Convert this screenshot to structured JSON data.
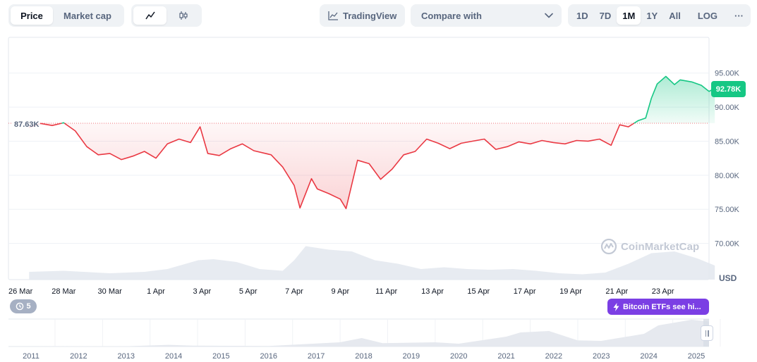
{
  "toolbar": {
    "type_options": [
      {
        "label": "Price",
        "active": true
      },
      {
        "label": "Market cap",
        "active": false
      }
    ],
    "style_options": [
      {
        "icon": "line-chart-icon",
        "active": true
      },
      {
        "icon": "candlestick-icon",
        "active": false
      }
    ],
    "tradingview_label": "TradingView",
    "compare_placeholder": "Compare with",
    "ranges": [
      "1D",
      "7D",
      "1M",
      "1Y",
      "All"
    ],
    "active_range": "1M",
    "log_label": "LOG",
    "more_label": "···"
  },
  "labels": {
    "open_price": "87.63K",
    "current_price": "92.78K",
    "currency": "USD",
    "watermark": "CoinMarketCap",
    "events_count": "5",
    "event_label": "Bitcoin ETFs see hi..."
  },
  "colors": {
    "up": "#16c784",
    "down": "#ea3943",
    "event": "#7b3fe4",
    "muted": "#58667e"
  },
  "chart_data": {
    "type": "line",
    "baseline": 87630,
    "ylim": [
      65000,
      100000
    ],
    "y_ticks": [
      70000,
      75000,
      80000,
      85000,
      90000,
      95000
    ],
    "y_tick_labels": [
      "70.00K",
      "75.00K",
      "80.00K",
      "85.00K",
      "90.00K",
      "95.00K"
    ],
    "x_range": [
      "2025-03-26",
      "2025-04-25"
    ],
    "x_ticks": [
      "2025-03-26",
      "2025-03-28",
      "2025-03-30",
      "2025-04-01",
      "2025-04-03",
      "2025-04-05",
      "2025-04-07",
      "2025-04-09",
      "2025-04-11",
      "2025-04-13",
      "2025-04-15",
      "2025-04-17",
      "2025-04-19",
      "2025-04-21",
      "2025-04-23"
    ],
    "x_tick_labels": [
      "26 Mar",
      "28 Mar",
      "30 Mar",
      "1 Apr",
      "3 Apr",
      "5 Apr",
      "7 Apr",
      "9 Apr",
      "11 Apr",
      "13 Apr",
      "15 Apr",
      "17 Apr",
      "19 Apr",
      "21 Apr",
      "23 Apr"
    ],
    "series": [
      {
        "points": [
          [
            "2025-03-26T12:00",
            87000
          ],
          [
            "2025-03-27T00:00",
            87600
          ],
          [
            "2025-03-27T12:00",
            87300
          ],
          [
            "2025-03-28T00:00",
            87700
          ],
          [
            "2025-03-28T12:00",
            86500
          ],
          [
            "2025-03-29T00:00",
            84200
          ],
          [
            "2025-03-29T12:00",
            83000
          ],
          [
            "2025-03-30T00:00",
            83200
          ],
          [
            "2025-03-30T12:00",
            82300
          ],
          [
            "2025-03-31T00:00",
            82800
          ],
          [
            "2025-03-31T12:00",
            83500
          ],
          [
            "2025-04-01T00:00",
            82500
          ],
          [
            "2025-04-01T12:00",
            84600
          ],
          [
            "2025-04-02T00:00",
            85300
          ],
          [
            "2025-04-02T12:00",
            84800
          ],
          [
            "2025-04-02T22:00",
            87100
          ],
          [
            "2025-04-03T06:00",
            83200
          ],
          [
            "2025-04-03T18:00",
            82900
          ],
          [
            "2025-04-04T06:00",
            83900
          ],
          [
            "2025-04-04T18:00",
            84600
          ],
          [
            "2025-04-05T06:00",
            83600
          ],
          [
            "2025-04-06T00:00",
            83000
          ],
          [
            "2025-04-06T12:00",
            81200
          ],
          [
            "2025-04-07T00:00",
            78500
          ],
          [
            "2025-04-07T06:00",
            75200
          ],
          [
            "2025-04-07T18:00",
            79500
          ],
          [
            "2025-04-08T00:00",
            78000
          ],
          [
            "2025-04-08T12:00",
            77300
          ],
          [
            "2025-04-09T00:00",
            76500
          ],
          [
            "2025-04-09T06:00",
            75100
          ],
          [
            "2025-04-09T18:00",
            82200
          ],
          [
            "2025-04-10T06:00",
            81700
          ],
          [
            "2025-04-10T18:00",
            79400
          ],
          [
            "2025-04-11T06:00",
            80900
          ],
          [
            "2025-04-11T18:00",
            83000
          ],
          [
            "2025-04-12T06:00",
            83500
          ],
          [
            "2025-04-12T18:00",
            85300
          ],
          [
            "2025-04-13T06:00",
            84700
          ],
          [
            "2025-04-13T18:00",
            83900
          ],
          [
            "2025-04-14T06:00",
            84700
          ],
          [
            "2025-04-14T18:00",
            85000
          ],
          [
            "2025-04-15T06:00",
            85300
          ],
          [
            "2025-04-15T18:00",
            83800
          ],
          [
            "2025-04-16T06:00",
            84200
          ],
          [
            "2025-04-16T18:00",
            84900
          ],
          [
            "2025-04-17T06:00",
            84600
          ],
          [
            "2025-04-17T18:00",
            85100
          ],
          [
            "2025-04-18T06:00",
            84800
          ],
          [
            "2025-04-18T18:00",
            84600
          ],
          [
            "2025-04-19T06:00",
            85100
          ],
          [
            "2025-04-19T18:00",
            85000
          ],
          [
            "2025-04-20T06:00",
            85300
          ],
          [
            "2025-04-20T18:00",
            84400
          ],
          [
            "2025-04-21T03:00",
            87400
          ],
          [
            "2025-04-21T12:00",
            87100
          ],
          [
            "2025-04-21T22:00",
            88000
          ],
          [
            "2025-04-22T06:00",
            88400
          ],
          [
            "2025-04-22T12:00",
            91300
          ],
          [
            "2025-04-22T18:00",
            93400
          ],
          [
            "2025-04-23T03:00",
            94500
          ],
          [
            "2025-04-23T12:00",
            93300
          ],
          [
            "2025-04-23T18:00",
            94000
          ],
          [
            "2025-04-24T06:00",
            93700
          ],
          [
            "2025-04-24T16:00",
            93200
          ],
          [
            "2025-04-25T00:00",
            92300
          ],
          [
            "2025-04-25T06:00",
            92780
          ]
        ]
      }
    ],
    "volume": [
      [
        "2025-03-26T12:00",
        0.22
      ],
      [
        "2025-03-28T00:00",
        0.25
      ],
      [
        "2025-03-30T00:00",
        0.18
      ],
      [
        "2025-03-31T12:00",
        0.22
      ],
      [
        "2025-04-01T12:00",
        0.3
      ],
      [
        "2025-04-02T20:00",
        0.55
      ],
      [
        "2025-04-03T12:00",
        0.58
      ],
      [
        "2025-04-04T12:00",
        0.5
      ],
      [
        "2025-04-05T12:00",
        0.3
      ],
      [
        "2025-04-06T12:00",
        0.25
      ],
      [
        "2025-04-07T00:00",
        0.55
      ],
      [
        "2025-04-07T12:00",
        0.95
      ],
      [
        "2025-04-08T12:00",
        0.85
      ],
      [
        "2025-04-09T12:00",
        0.8
      ],
      [
        "2025-04-10T12:00",
        0.55
      ],
      [
        "2025-04-11T12:00",
        0.45
      ],
      [
        "2025-04-12T12:00",
        0.3
      ],
      [
        "2025-04-13T12:00",
        0.35
      ],
      [
        "2025-04-14T12:00",
        0.3
      ],
      [
        "2025-04-15T12:00",
        0.28
      ],
      [
        "2025-04-16T12:00",
        0.3
      ],
      [
        "2025-04-17T12:00",
        0.25
      ],
      [
        "2025-04-18T12:00",
        0.18
      ],
      [
        "2025-04-19T12:00",
        0.15
      ],
      [
        "2025-04-20T12:00",
        0.2
      ],
      [
        "2025-04-21T12:00",
        0.45
      ],
      [
        "2025-04-22T12:00",
        0.75
      ],
      [
        "2025-04-23T12:00",
        0.8
      ],
      [
        "2025-04-24T12:00",
        0.6
      ],
      [
        "2025-04-25T06:00",
        0.4
      ]
    ],
    "navigator": {
      "year_labels": [
        "2011",
        "2012",
        "2013",
        "2014",
        "2015",
        "2016",
        "2017",
        "2018",
        "2019",
        "2020",
        "2021",
        "2022",
        "2023",
        "2024",
        "2025"
      ],
      "year_ticks": [
        2011,
        2012,
        2013,
        2014,
        2015,
        2016,
        2017,
        2018,
        2019,
        2020,
        2021,
        2022,
        2023,
        2024,
        2025
      ],
      "x_range": [
        2010.97,
        2025.33
      ],
      "series": [
        [
          2011,
          0.0
        ],
        [
          2013.0,
          0.01
        ],
        [
          2013.9,
          0.06
        ],
        [
          2014.4,
          0.03
        ],
        [
          2016.0,
          0.02
        ],
        [
          2017.5,
          0.15
        ],
        [
          2017.96,
          0.3
        ],
        [
          2018.4,
          0.12
        ],
        [
          2019.5,
          0.15
        ],
        [
          2020.0,
          0.1
        ],
        [
          2021.0,
          0.35
        ],
        [
          2021.3,
          0.5
        ],
        [
          2021.9,
          0.55
        ],
        [
          2022.5,
          0.22
        ],
        [
          2023.0,
          0.2
        ],
        [
          2023.9,
          0.45
        ],
        [
          2024.2,
          0.75
        ],
        [
          2024.9,
          0.95
        ],
        [
          2025.2,
          0.9
        ],
        [
          2025.33,
          0.88
        ]
      ],
      "selected_range": [
        "2025-03-26",
        "2025-04-25"
      ]
    }
  }
}
